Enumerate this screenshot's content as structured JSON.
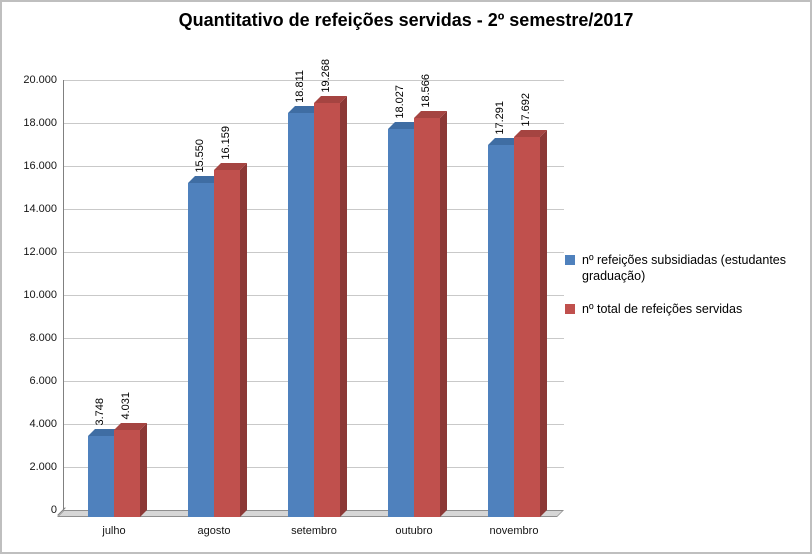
{
  "title": "Quantitativo de refeições servidas - 2º semestre/2017",
  "chart_data": {
    "type": "bar",
    "subtype": "3d-clustered-column",
    "title": "Quantitativo de refeições servidas - 2º semestre/2017",
    "categories": [
      "julho",
      "agosto",
      "setembro",
      "outubro",
      "novembro"
    ],
    "series": [
      {
        "name": "nº refeições subsidiadas (estudantes graduação)",
        "color": "#4f81bd",
        "color_side": "#31598b",
        "color_top": "#3f6da3",
        "values": [
          3748,
          15550,
          18811,
          18027,
          17291
        ],
        "labels": [
          "3.748",
          "15.550",
          "18.811",
          "18.027",
          "17.291"
        ]
      },
      {
        "name": "nº total de refeições servidas",
        "color": "#c0504d",
        "color_side": "#8c3836",
        "color_top": "#a54441",
        "values": [
          4031,
          16159,
          19268,
          18566,
          17692
        ],
        "labels": [
          "4.031",
          "16.159",
          "19.268",
          "18.566",
          "17.692"
        ]
      }
    ],
    "xlabel": "",
    "ylabel": "",
    "ylim": [
      0,
      20000
    ],
    "ytick_step": 2000,
    "ytick_labels": [
      "0",
      "2.000",
      "4.000",
      "6.000",
      "8.000",
      "10.000",
      "12.000",
      "14.000",
      "16.000",
      "18.000",
      "20.000"
    ],
    "grid": true,
    "legend_position": "right"
  }
}
